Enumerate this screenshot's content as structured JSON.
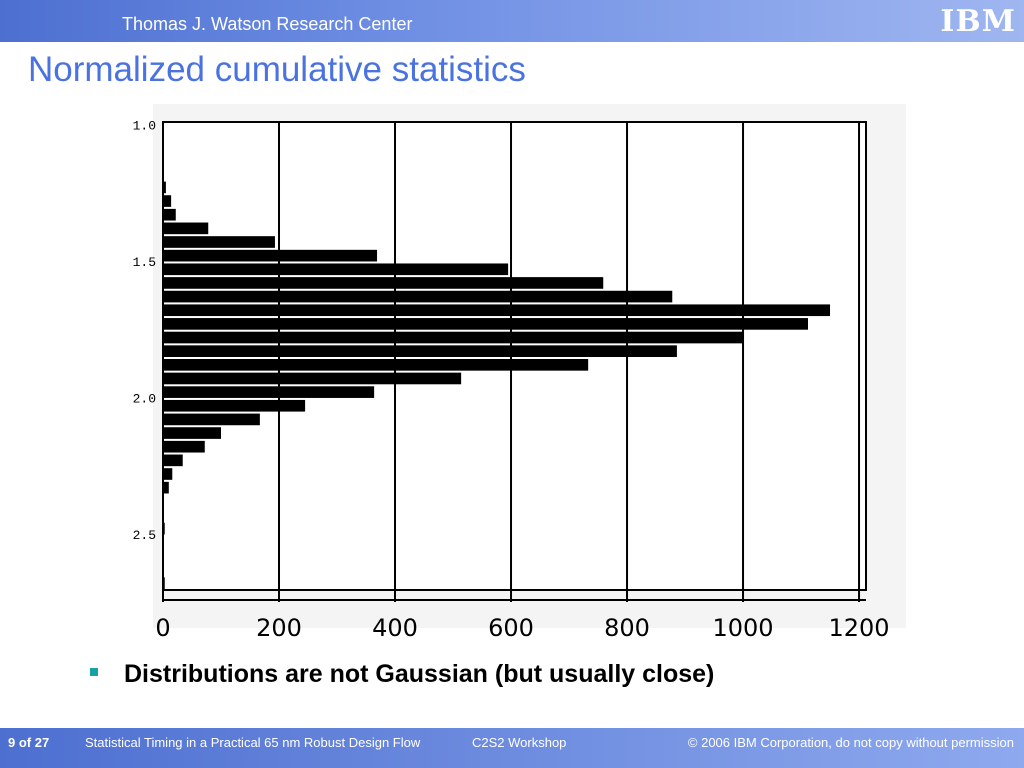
{
  "header": {
    "title": "Thomas J. Watson Research Center",
    "logo": "IBM"
  },
  "slide_title": "Normalized cumulative statistics",
  "chart_data": {
    "type": "histogram",
    "orientation": "horizontal",
    "bins": [
      1.2,
      1.25,
      1.3,
      1.35,
      1.4,
      1.45,
      1.5,
      1.55,
      1.6,
      1.65,
      1.7,
      1.75,
      1.8,
      1.85,
      1.9,
      1.95,
      2.0,
      2.05,
      2.1,
      2.15,
      2.2,
      2.25,
      2.3,
      2.35,
      2.4,
      2.45,
      2.5,
      2.55,
      2.6,
      2.65,
      2.7
    ],
    "values": [
      5,
      14,
      22,
      78,
      193,
      369,
      595,
      759,
      878,
      1150,
      1112,
      1000,
      886,
      733,
      514,
      364,
      245,
      167,
      100,
      72,
      34,
      16,
      10,
      0,
      0,
      3,
      0,
      0,
      0,
      3
    ],
    "color": "#000000",
    "xlim": [
      0,
      1212
    ],
    "xticks": [
      0,
      200,
      400,
      600,
      800,
      1000,
      1200
    ],
    "ylim": [
      1.0,
      2.7
    ],
    "yticks": [
      {
        "value": 1.0,
        "label": "1.0"
      },
      {
        "value": 1.5,
        "label": "1.5"
      },
      {
        "value": 2.0,
        "label": "2.0"
      },
      {
        "value": 2.5,
        "label": "2.5"
      }
    ],
    "grid": true
  },
  "bullet": "Distributions are not Gaussian (but usually close)",
  "footer": {
    "page": "9 of 27",
    "talk": "Statistical Timing in a Practical 65 nm Robust Design Flow",
    "venue": "C2S2 Workshop",
    "copyright": "© 2006 IBM Corporation, do not copy without permission"
  }
}
